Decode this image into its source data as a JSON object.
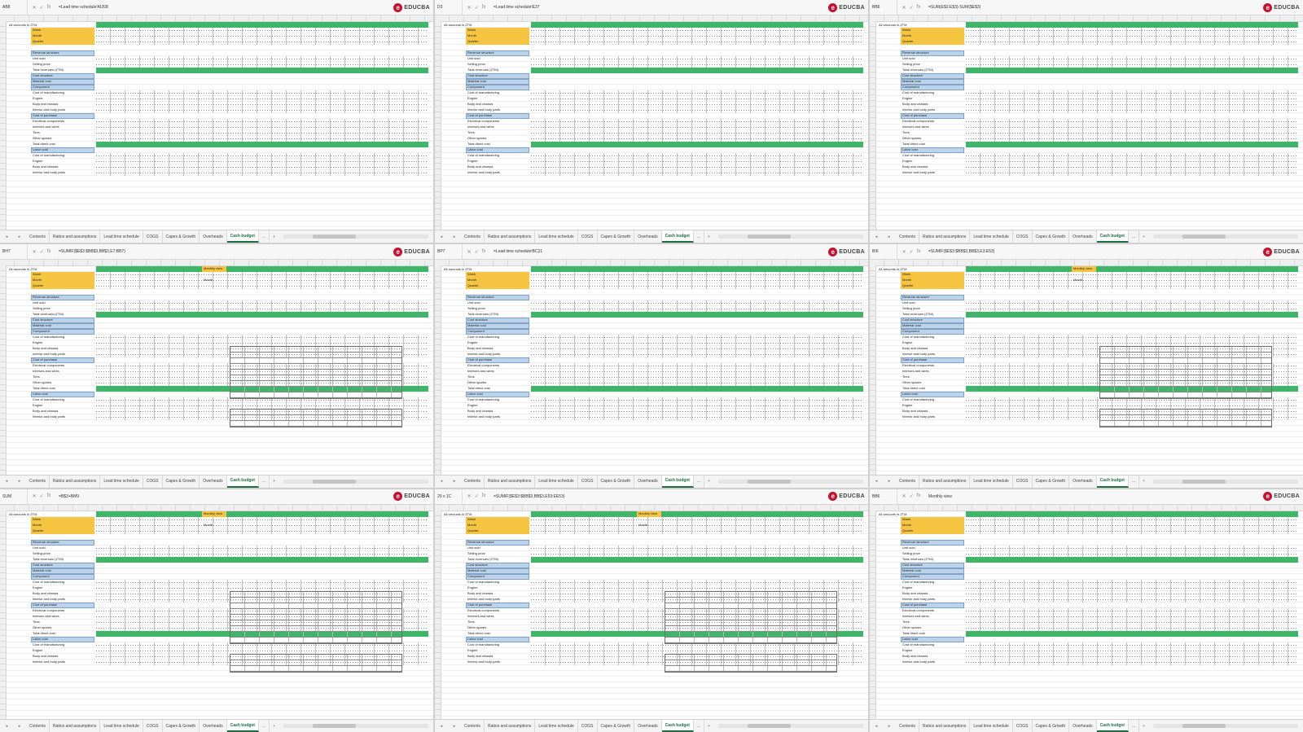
{
  "brand": {
    "logo_text": "EDUCBA"
  },
  "panes": [
    {
      "name_box": "AB8",
      "formula": "=Lead time schedule!AI208",
      "active_tab": 8
    },
    {
      "name_box": "D3",
      "formula": "=Lead time schedule!E37",
      "active_tab": 8
    },
    {
      "name_box": "BB6",
      "formula": "=SUM(E$3:E$3)-SUM($E$3)",
      "active_tab": 8
    },
    {
      "name_box": "BH7",
      "formula": "=SUMIF($E$3:$BB$3,BB$3,E7:BB7)",
      "active_tab": 8
    },
    {
      "name_box": "BP7",
      "formula": "=Lead time schedule!BC21",
      "active_tab": 8
    },
    {
      "name_box": "BI6",
      "formula": "=SUMIF($E$3:$BB$3,BB$3,E3:E53)",
      "active_tab": 8
    },
    {
      "name_box": "SUM",
      "formula": "=B$3+BM9",
      "active_tab": 8
    },
    {
      "name_box": "29 x 1C",
      "formula": "=SUMIF($E$3:$BB$3,BB$3,E53:EE53)",
      "active_tab": 8
    },
    {
      "name_box": "BB6",
      "formula": "Monthly view",
      "active_tab": 8
    }
  ],
  "sheet": {
    "header_label": "All amounts in ZTM",
    "yellow_labels": [
      "Week",
      "Month",
      "Quarter"
    ],
    "sections": [
      "Revenue structure",
      "Unit sold",
      "Selling price",
      "Total revenues (ZTM)",
      "Cost structure",
      "Material cost",
      "Component",
      "Cost of manufacturing",
      "Engine",
      "Body and chassis",
      "Interior and body parts",
      "Cost of purchase",
      "Electrical components",
      "Interiors and wires",
      "Tires",
      "Other spares",
      "Total direct cost",
      "Labor cost",
      "Cost of manufacturing",
      "Engine",
      "Body and chassis",
      "Interior and body parts"
    ],
    "monthly_view_label": "Monthly view",
    "month_label": "Month"
  },
  "tabs": [
    "Contents",
    "Ratios and assumptions",
    "Lead time schedule",
    "COGS",
    "Capex & Growth",
    "Overheads",
    "Cash budget",
    "..."
  ],
  "tab_add_label": "+",
  "colors": {
    "accent_green": "#3fb56a",
    "header_yellow": "#f5c542",
    "section_blue": "#bcd3ea",
    "brand_red": "#c8102e"
  }
}
